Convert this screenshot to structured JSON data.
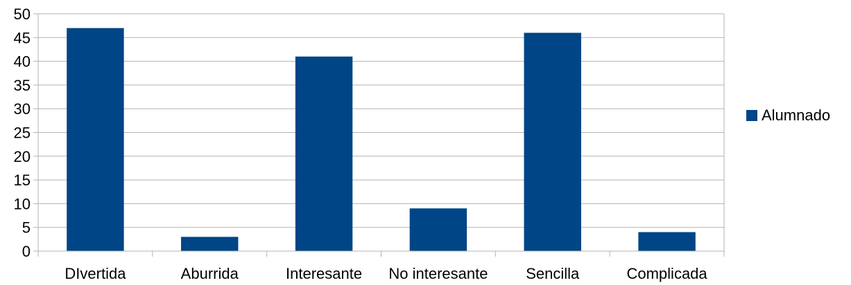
{
  "chart_data": {
    "type": "bar",
    "categories": [
      "DIvertida",
      "Aburrida",
      "Interesante",
      "No interesante",
      "Sencilla",
      "Complicada"
    ],
    "series": [
      {
        "name": "Alumnado",
        "values": [
          47,
          3,
          41,
          9,
          46,
          4
        ],
        "color": "#004586"
      }
    ],
    "title": "",
    "xlabel": "",
    "ylabel": "",
    "ylim": [
      0,
      50
    ],
    "yticks": [
      0,
      5,
      10,
      15,
      20,
      25,
      30,
      35,
      40,
      45,
      50
    ],
    "grid": true,
    "legend_position": "right"
  }
}
